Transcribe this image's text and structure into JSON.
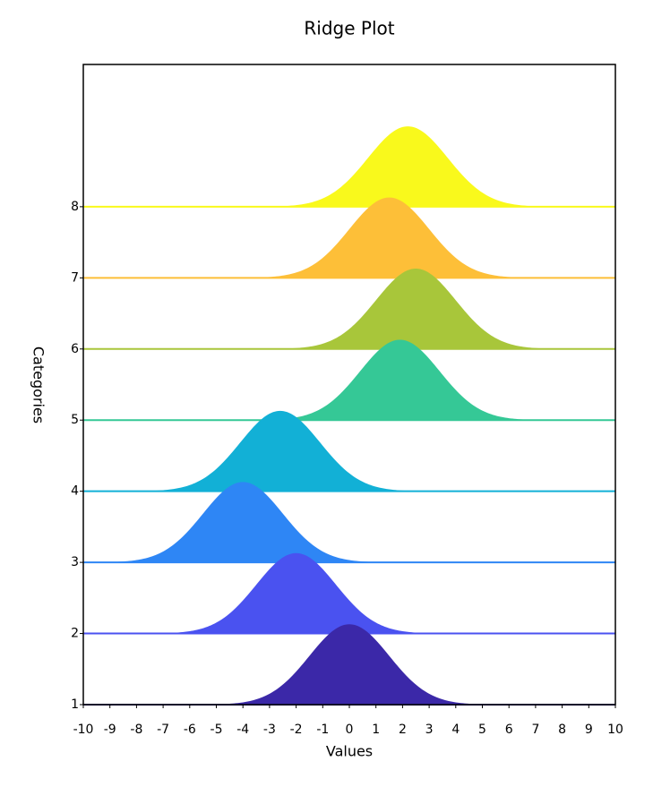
{
  "chart_data": {
    "type": "ridge",
    "title": "Ridge Plot",
    "xlabel": "Values",
    "ylabel": "Categories",
    "xlim": [
      -10,
      10
    ],
    "xticks": [
      -10,
      -9,
      -8,
      -7,
      -6,
      -5,
      -4,
      -3,
      -2,
      -1,
      0,
      1,
      2,
      3,
      4,
      5,
      6,
      7,
      8,
      9,
      10
    ],
    "ylim": [
      1,
      10
    ],
    "yticks": [
      1,
      2,
      3,
      4,
      5,
      6,
      7,
      8
    ],
    "ridge_height": 1.13,
    "series": [
      {
        "y": 1,
        "mean": 0,
        "std": 1.5,
        "color": "#3b28a8"
      },
      {
        "y": 2,
        "mean": -2,
        "std": 1.5,
        "color": "#4a52f0"
      },
      {
        "y": 3,
        "mean": -4,
        "std": 1.5,
        "color": "#2e86f5"
      },
      {
        "y": 4,
        "mean": -2.6,
        "std": 1.5,
        "color": "#12b0d6"
      },
      {
        "y": 5,
        "mean": 1.9,
        "std": 1.5,
        "color": "#35c896"
      },
      {
        "y": 6,
        "mean": 2.5,
        "std": 1.5,
        "color": "#a8c63a"
      },
      {
        "y": 7,
        "mean": 1.5,
        "std": 1.5,
        "color": "#fdbf38"
      },
      {
        "y": 8,
        "mean": 2.2,
        "std": 1.5,
        "color": "#f9f91c"
      }
    ]
  }
}
